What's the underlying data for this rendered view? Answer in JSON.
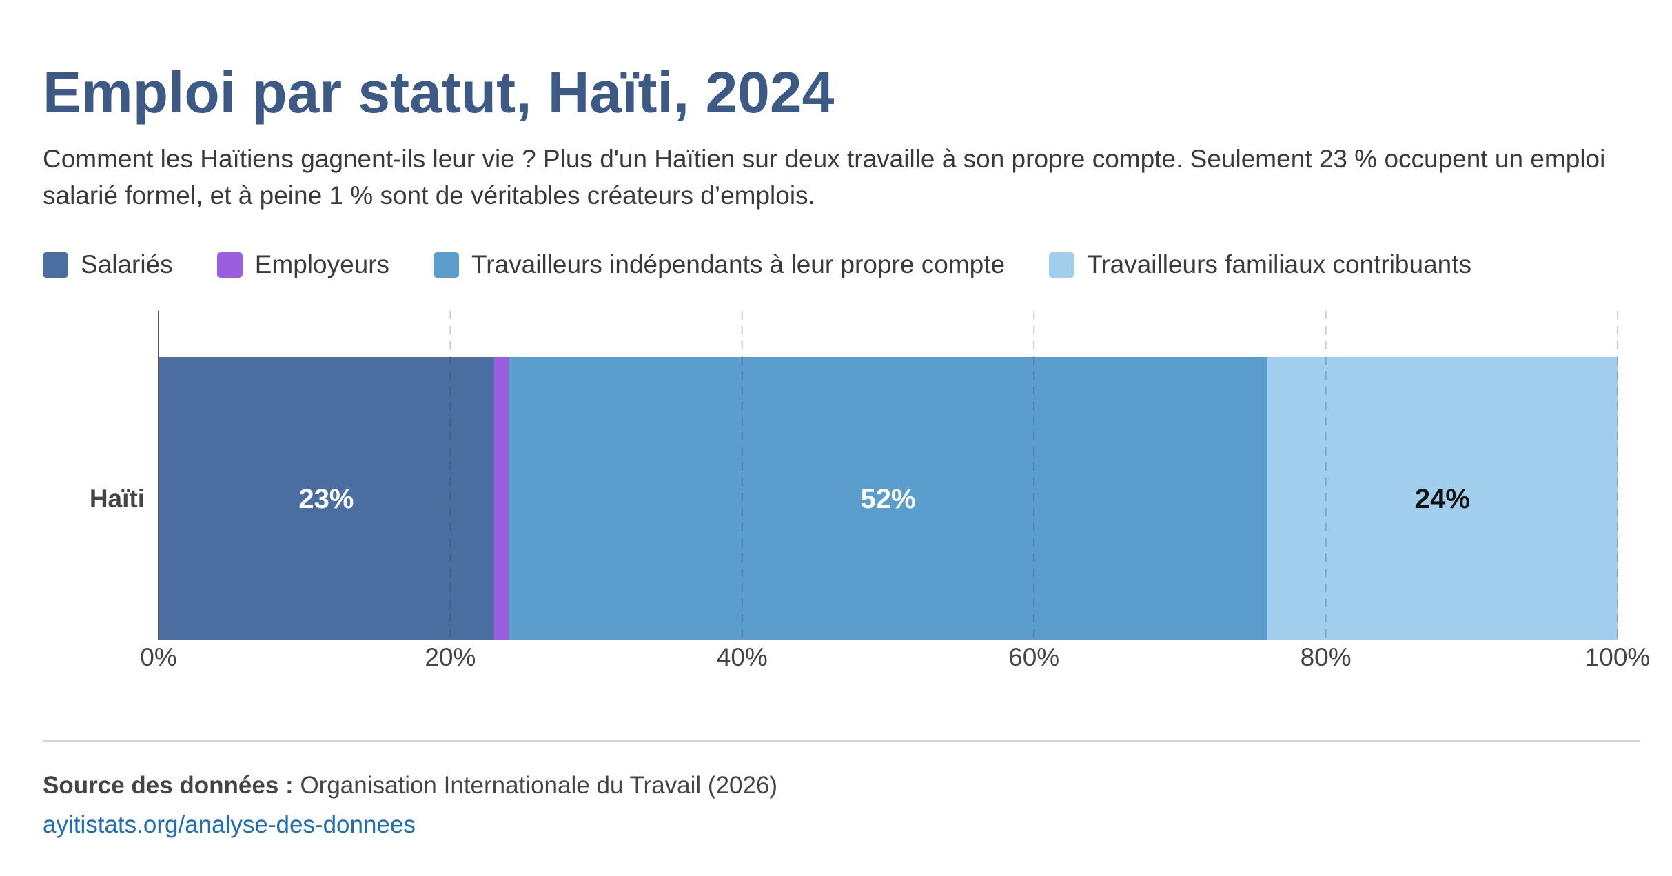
{
  "header": {
    "title": "Emploi par statut, Haïti, 2024",
    "subtitle": "Comment les Haïtiens gagnent-ils leur vie ? Plus d'un Haïtien sur deux travaille à son propre compte. Seulement 23 % occupent un emploi salarié formel, et à peine 1 % sont de véritables créateurs d’emplois."
  },
  "chart_data": {
    "type": "bar",
    "orientation": "horizontal",
    "stacked": true,
    "categories": [
      "Haïti"
    ],
    "series": [
      {
        "name": "Salariés",
        "values": [
          23
        ],
        "color": "#4a6e9f",
        "data_labels": [
          "23%"
        ],
        "label_color": "#ffffff"
      },
      {
        "name": "Employeurs",
        "values": [
          1
        ],
        "color": "#9b5ee0"
      },
      {
        "name": "Travailleurs indépendants à leur propre compte",
        "values": [
          52
        ],
        "color": "#5b9ece",
        "data_labels": [
          "52%"
        ],
        "label_color": "#ffffff"
      },
      {
        "name": "Travailleurs familiaux contribuants",
        "values": [
          24
        ],
        "color": "#a0ceec",
        "data_labels": [
          "24%"
        ],
        "label_color": "#111111"
      }
    ],
    "xlim": [
      0,
      100
    ],
    "x_ticks": [
      0,
      20,
      40,
      60,
      80,
      100
    ],
    "x_tick_labels": [
      "0%",
      "20%",
      "40%",
      "60%",
      "80%",
      "100%"
    ],
    "grid": "vertical dashed",
    "legend_position": "top-left"
  },
  "footer": {
    "source_label": "Source des données :",
    "source_text": "Organisation Internationale du Travail (2026)",
    "link_text": "ayitistats.org/analyse-des-donnees"
  }
}
